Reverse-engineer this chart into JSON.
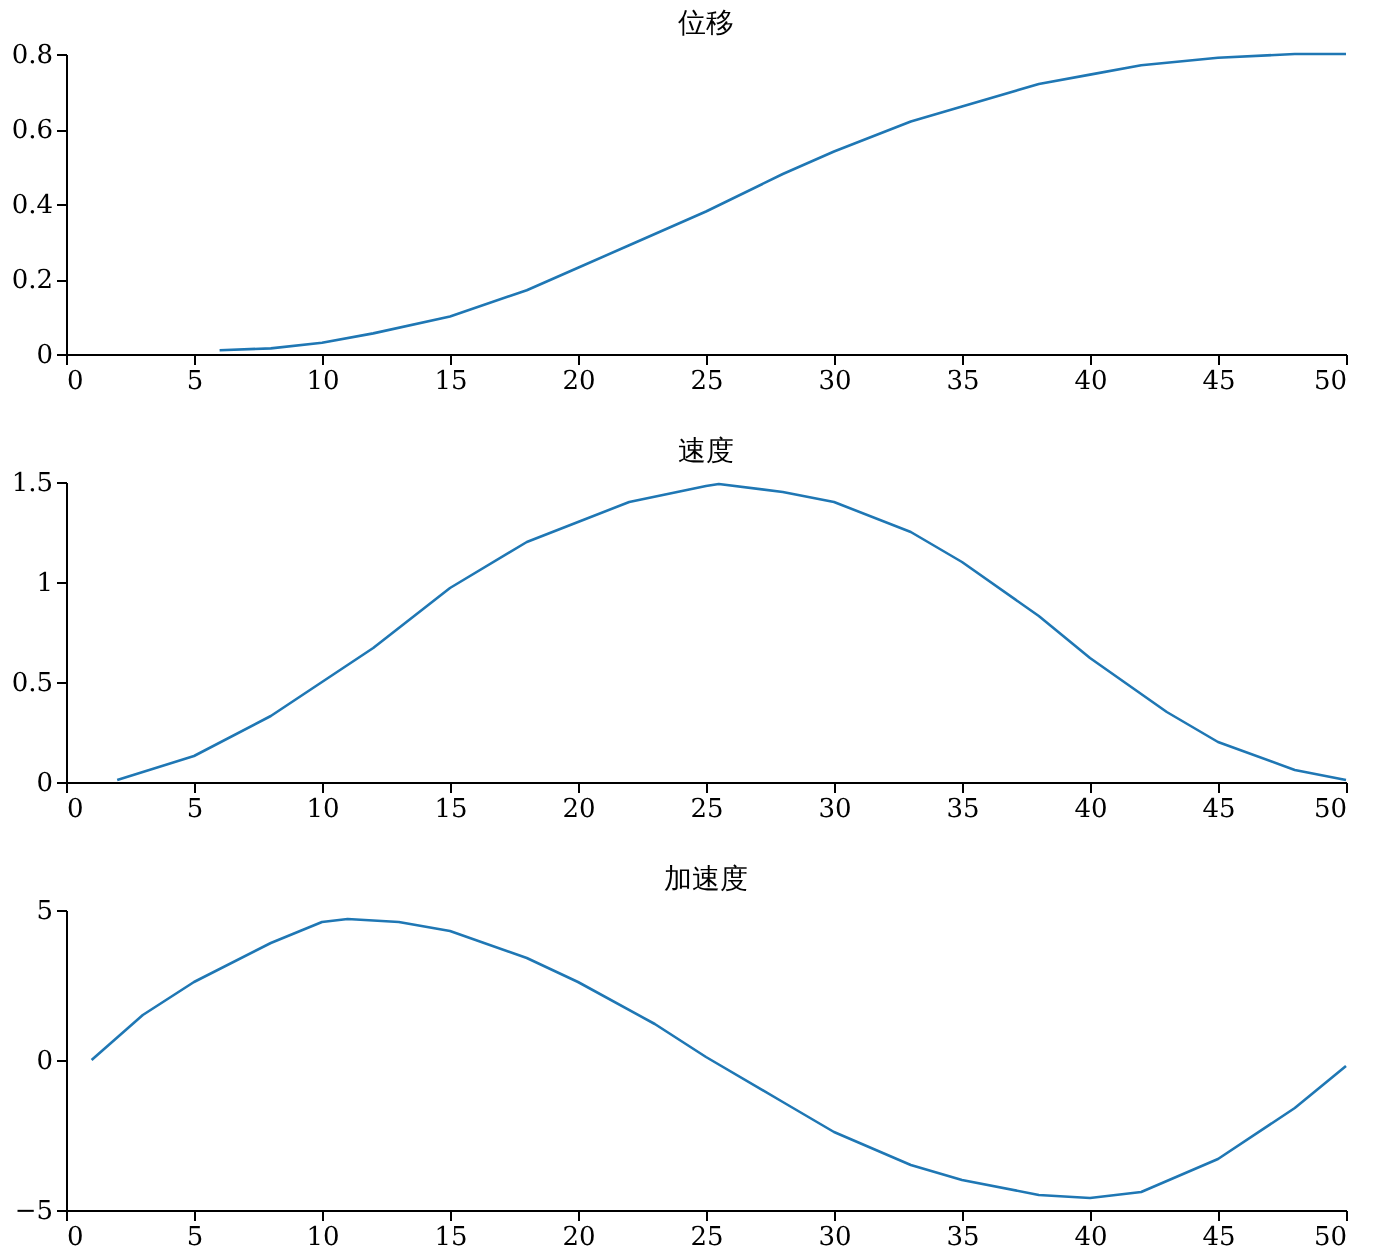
{
  "chart_data": [
    {
      "type": "line",
      "title": "位移",
      "x": [
        6,
        8,
        10,
        12,
        15,
        18,
        20,
        22,
        25,
        28,
        30,
        33,
        35,
        38,
        40,
        42,
        45,
        48,
        50
      ],
      "series": [
        {
          "color": "#1f77b4",
          "values": [
            0.01,
            0.015,
            0.03,
            0.055,
            0.1,
            0.17,
            0.23,
            0.29,
            0.38,
            0.48,
            0.54,
            0.62,
            0.66,
            0.72,
            0.745,
            0.77,
            0.79,
            0.8,
            0.8
          ]
        }
      ],
      "xlim": [
        0,
        50
      ],
      "xticks": [
        0,
        5,
        10,
        15,
        20,
        25,
        30,
        35,
        40,
        45,
        50
      ],
      "ylim": [
        0,
        0.8
      ],
      "yticks": [
        0,
        0.2,
        0.4,
        0.6,
        0.8
      ],
      "grid": false
    },
    {
      "type": "line",
      "title": "速度",
      "x": [
        2,
        5,
        8,
        10,
        12,
        15,
        18,
        20,
        22,
        25,
        25.5,
        28,
        30,
        33,
        35,
        38,
        40,
        43,
        45,
        48,
        50
      ],
      "series": [
        {
          "color": "#1f77b4",
          "values": [
            0.01,
            0.13,
            0.33,
            0.5,
            0.67,
            0.97,
            1.2,
            1.3,
            1.4,
            1.48,
            1.49,
            1.45,
            1.4,
            1.25,
            1.1,
            0.83,
            0.62,
            0.35,
            0.2,
            0.06,
            0.01
          ]
        }
      ],
      "xlim": [
        0,
        50
      ],
      "xticks": [
        0,
        5,
        10,
        15,
        20,
        25,
        30,
        35,
        40,
        45,
        50
      ],
      "ylim": [
        0,
        1.5
      ],
      "yticks": [
        0,
        0.5,
        1,
        1.5
      ],
      "grid": false
    },
    {
      "type": "line",
      "title": "加速度",
      "x": [
        1,
        3,
        5,
        8,
        10,
        11,
        13,
        15,
        18,
        20,
        23,
        25,
        28,
        30,
        33,
        35,
        38,
        40,
        42,
        45,
        48,
        50
      ],
      "series": [
        {
          "color": "#1f77b4",
          "values": [
            0,
            1.5,
            2.6,
            3.9,
            4.6,
            4.7,
            4.6,
            4.3,
            3.4,
            2.6,
            1.2,
            0.1,
            -1.4,
            -2.4,
            -3.5,
            -4.0,
            -4.5,
            -4.6,
            -4.4,
            -3.3,
            -1.6,
            -0.2
          ]
        }
      ],
      "xlim": [
        0,
        50
      ],
      "xticks": [
        0,
        5,
        10,
        15,
        20,
        25,
        30,
        35,
        40,
        45,
        50
      ],
      "ylim": [
        -5,
        5
      ],
      "yticks": [
        -5,
        0,
        5
      ],
      "grid": false
    }
  ]
}
